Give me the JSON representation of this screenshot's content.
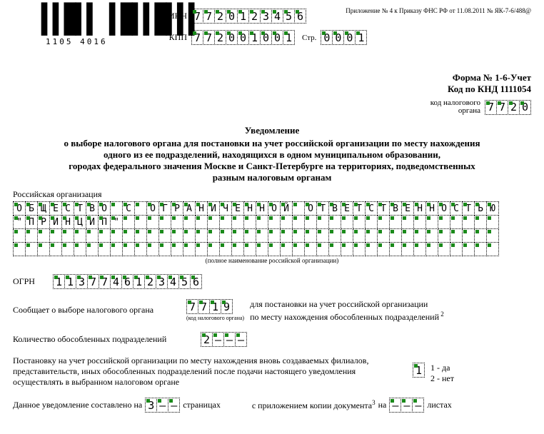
{
  "barcode": {
    "pattern": "▌▌█▌▌ ▌█▌▌█▌▌▌",
    "number": "1105 4016"
  },
  "appendix_text": "Приложение № 4 к Приказу ФНС РФ от 11.08.2011 № ЯК-7-6/488@",
  "inn": {
    "label": "ИНН",
    "digits": [
      "7",
      "7",
      "2",
      "0",
      "1",
      "2",
      "3",
      "4",
      "5",
      "6"
    ]
  },
  "kpp": {
    "label": "КПП",
    "digits": [
      "7",
      "7",
      "2",
      "0",
      "0",
      "1",
      "0",
      "0",
      "1"
    ]
  },
  "page": {
    "label": "Стр.",
    "digits": [
      "0",
      "0",
      "0",
      "1"
    ]
  },
  "form_line": "Форма № 1-6-Учет",
  "knd_line": "Код по КНД 1111054",
  "tax_code": {
    "label_l1": "код налогового",
    "label_l2": "органа",
    "digits": [
      "7",
      "7",
      "2",
      "0"
    ]
  },
  "title": {
    "head": "Уведомление",
    "lines": [
      "о выборе налогового органа для постановки на учет российской организации по месту нахождения",
      "одного из ее подразделений, находящихся в одном муниципальном образовании,",
      "городах федерального значения Москве и Санкт-Петербурге на территориях, подведомственных",
      "разным налоговым органам"
    ]
  },
  "org": {
    "label": "Российская организация",
    "name_line1": "ОБЩЕСТВО С ОГРАНИЧЕННОЙ ОТВЕТСТВЕННОСТЬЮ",
    "name_line2": "\"ПРИНЦИП\"",
    "cols": 40,
    "rows": 4,
    "caption": "(полное наименование российской организации)"
  },
  "ogrn": {
    "label": "ОГРН",
    "digits": [
      "1",
      "1",
      "3",
      "7",
      "7",
      "4",
      "6",
      "1",
      "2",
      "3",
      "4",
      "5",
      "6"
    ]
  },
  "choice": {
    "label": "Сообщает о выборе налогового органа",
    "digits": [
      "7",
      "7",
      "1",
      "9"
    ],
    "under": "(код налогового органа)",
    "side_l1": "для постановки на учет российской организации",
    "side_l2": "по месту нахождения обособленных подразделений"
  },
  "count": {
    "label": "Количество обособленных подразделений",
    "digits": [
      "2",
      "–",
      "–",
      "–"
    ],
    "filled": [
      true,
      false,
      false,
      false
    ]
  },
  "para_text": "Постановку на учет российской организации по месту нахождения вновь создаваемых филиалов, представительств, иных обособленных подразделений после подачи настоящего уведомления осуществлять в выбранном налоговом органе",
  "yes_no": {
    "digits": [
      "1"
    ],
    "opt1": "1 - да",
    "opt2": "2 - нет"
  },
  "last": {
    "t1": "Данное уведомление составлено на",
    "pages": [
      "3",
      "–",
      "–"
    ],
    "pages_filled": [
      true,
      false,
      false
    ],
    "t2": "страницах",
    "t3": "с приложением копии документа",
    "sup": "3",
    "t4": "на",
    "sheets": [
      "–",
      "–",
      "–"
    ],
    "sheets_filled": [
      false,
      false,
      false
    ],
    "t5": "листах"
  }
}
